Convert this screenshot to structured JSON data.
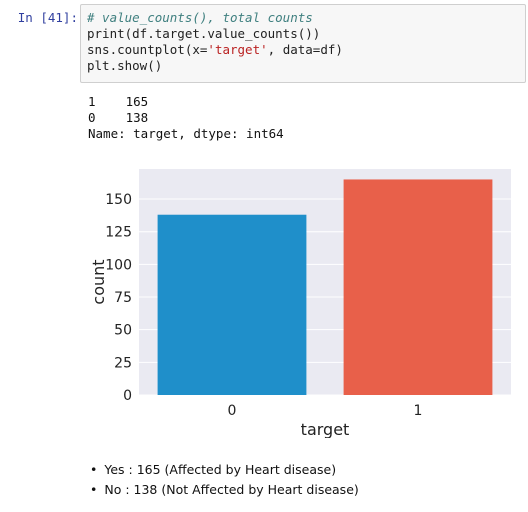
{
  "cell": {
    "prompt": "In [41]:",
    "code_lines": [
      "# value_counts(), total counts",
      "print(df.target.value_counts())",
      "sns.countplot(x='target', data=df)",
      "plt.show()"
    ]
  },
  "output": {
    "lines": [
      "1    165",
      "0    138",
      "Name: target, dtype: int64"
    ]
  },
  "chart_data": {
    "type": "bar",
    "categories": [
      "0",
      "1"
    ],
    "values": [
      138,
      165
    ],
    "colors": [
      "#1f8fca",
      "#e8604a"
    ],
    "xlabel": "target",
    "ylabel": "count",
    "yticks": [
      0,
      25,
      50,
      75,
      100,
      125,
      150
    ],
    "ylim": [
      0,
      173
    ],
    "grid": true,
    "background": "#eaeaf2"
  },
  "notes": [
    "Yes : 165 (Affected by Heart disease)",
    "No : 138 (Not Affected by Heart disease)"
  ]
}
